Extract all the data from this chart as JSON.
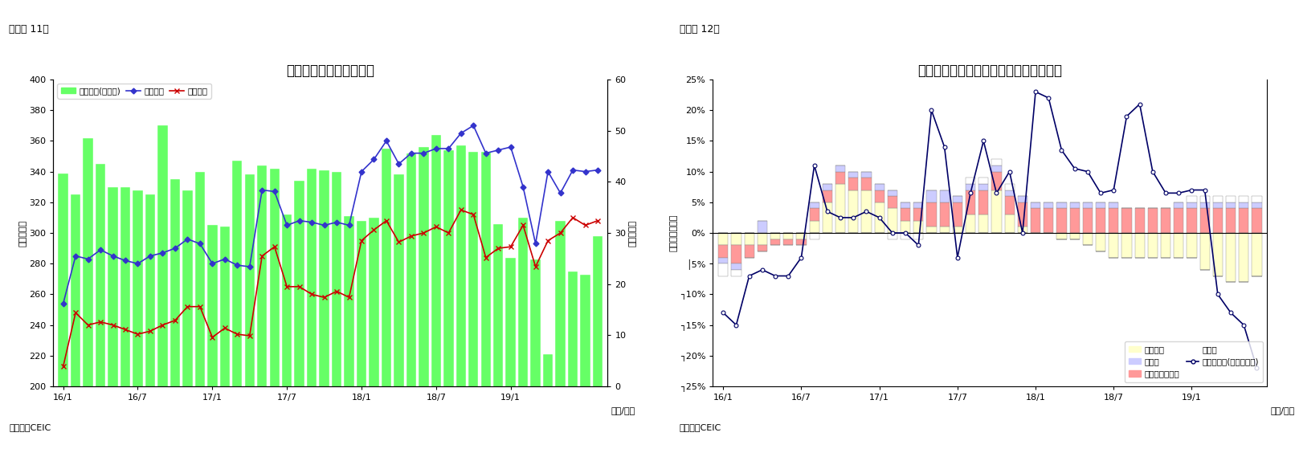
{
  "chart1": {
    "title": "シンガポール　貿易収支",
    "ylabel_left": "（億ドル）",
    "ylabel_right": "（億ドル）",
    "xlabel": "（年/月）",
    "source": "（資料）CEIC",
    "figure_label": "（図表 11）",
    "ylim_left": [
      200,
      400
    ],
    "ylim_right": [
      0,
      60
    ],
    "yticks_left": [
      200,
      220,
      240,
      260,
      280,
      300,
      320,
      340,
      360,
      380,
      400
    ],
    "yticks_right": [
      0,
      10,
      20,
      30,
      40,
      50,
      60
    ],
    "xtick_labels": [
      "16/1",
      "16/7",
      "17/1",
      "17/7",
      "18/1",
      "18/7",
      "19/1"
    ],
    "bar_color": "#66FF66",
    "line1_color": "#3333CC",
    "line2_color": "#CC0000",
    "bar_heights": [
      339,
      325,
      362,
      345,
      330,
      330,
      328,
      325,
      370,
      335,
      328,
      340,
      305,
      304,
      347,
      338,
      344,
      342,
      312,
      334,
      342,
      341,
      340,
      311,
      308,
      310,
      355,
      338,
      352,
      356,
      364,
      354,
      357,
      353,
      353,
      306,
      284,
      310,
      283,
      221,
      308,
      275,
      273,
      298
    ],
    "exports": [
      254,
      285,
      283,
      289,
      285,
      282,
      280,
      285,
      287,
      290,
      296,
      293,
      280,
      283,
      279,
      278,
      328,
      327,
      305,
      308,
      307,
      305,
      307,
      305,
      340,
      348,
      360,
      345,
      352,
      352,
      355,
      355,
      365,
      370,
      352,
      354,
      356,
      330,
      293,
      340,
      326,
      341,
      340,
      341
    ],
    "imports": [
      213,
      248,
      240,
      242,
      240,
      237,
      234,
      236,
      240,
      243,
      252,
      252,
      232,
      238,
      234,
      233,
      285,
      291,
      265,
      265,
      260,
      258,
      262,
      258,
      295,
      302,
      308,
      294,
      298,
      300,
      304,
      300,
      315,
      312,
      284,
      290,
      291,
      305,
      278,
      295,
      300,
      310,
      305,
      308
    ]
  },
  "chart2": {
    "title": "シンガポール　輸出の伸び率（品目別）",
    "ylabel_left": "（前年同期比）",
    "xlabel": "（年/月）",
    "source": "（資料）CEIC",
    "figure_label": "（図表 12）",
    "ylim": [
      -0.25,
      0.25
    ],
    "ytick_vals": [
      0.25,
      0.2,
      0.15,
      0.1,
      0.05,
      0.0,
      -0.05,
      -0.1,
      -0.15,
      -0.2,
      -0.25
    ],
    "ytick_labels": [
      "25%",
      "20%",
      "15%",
      "10%",
      "5%",
      "0%",
      "│5%",
      "┐10%",
      "┐15%",
      "┐20%",
      "┐25%"
    ],
    "xtick_labels": [
      "16/1",
      "16/7",
      "17/1",
      "17/7",
      "18/1",
      "18/7",
      "19/1"
    ],
    "color_electronics": "#FFFFCC",
    "color_pharma": "#CCCCFF",
    "color_chemicals": "#FF9999",
    "color_other": "#FFFFFF",
    "line_color": "#000066",
    "electronics": [
      -0.02,
      -0.02,
      -0.02,
      -0.02,
      -0.01,
      -0.01,
      -0.01,
      0.02,
      0.05,
      0.08,
      0.07,
      0.07,
      0.05,
      0.04,
      0.02,
      0.02,
      0.01,
      0.01,
      0.01,
      0.03,
      0.03,
      0.07,
      0.03,
      0.01,
      0.0,
      0.0,
      -0.01,
      -0.01,
      -0.02,
      -0.03,
      -0.04,
      -0.04,
      -0.04,
      -0.04,
      -0.04,
      -0.04,
      -0.04,
      -0.06,
      -0.07,
      -0.08,
      -0.08,
      -0.07
    ],
    "pharma": [
      -0.01,
      -0.01,
      0.0,
      0.02,
      0.0,
      0.0,
      0.0,
      0.01,
      0.01,
      0.01,
      0.01,
      0.01,
      0.01,
      0.01,
      0.01,
      0.01,
      0.02,
      0.02,
      0.01,
      0.01,
      0.01,
      0.01,
      0.01,
      0.01,
      0.01,
      0.01,
      0.01,
      0.01,
      0.01,
      0.01,
      0.01,
      0.0,
      0.0,
      0.0,
      0.0,
      0.01,
      0.01,
      0.01,
      0.01,
      0.01,
      0.01,
      0.01
    ],
    "chemicals": [
      -0.02,
      -0.03,
      -0.02,
      -0.01,
      -0.01,
      -0.01,
      -0.01,
      0.02,
      0.02,
      0.02,
      0.02,
      0.02,
      0.02,
      0.02,
      0.02,
      0.02,
      0.04,
      0.04,
      0.04,
      0.04,
      0.04,
      0.03,
      0.03,
      0.04,
      0.04,
      0.04,
      0.04,
      0.04,
      0.04,
      0.04,
      0.04,
      0.04,
      0.04,
      0.04,
      0.04,
      0.04,
      0.04,
      0.04,
      0.04,
      0.04,
      0.04,
      0.04
    ],
    "other": [
      -0.02,
      -0.01,
      0.0,
      0.0,
      0.0,
      0.0,
      0.0,
      -0.01,
      0.0,
      0.0,
      0.0,
      0.0,
      0.0,
      -0.01,
      -0.01,
      -0.01,
      0.0,
      0.0,
      0.0,
      0.01,
      0.01,
      0.01,
      0.01,
      0.0,
      0.0,
      0.0,
      0.0,
      0.0,
      0.0,
      0.0,
      0.0,
      0.0,
      0.0,
      0.0,
      0.0,
      0.0,
      0.01,
      0.01,
      0.01,
      0.01,
      0.01,
      0.01
    ],
    "nonoil_line": [
      -0.13,
      -0.15,
      -0.07,
      -0.06,
      -0.07,
      -0.07,
      -0.04,
      0.11,
      0.035,
      0.025,
      0.025,
      0.035,
      0.025,
      0.0,
      0.0,
      -0.02,
      0.2,
      0.14,
      -0.04,
      0.065,
      0.15,
      0.065,
      0.1,
      0.0,
      0.23,
      0.22,
      0.135,
      0.105,
      0.1,
      0.065,
      0.07,
      0.19,
      0.21,
      0.1,
      0.065,
      0.065,
      0.07,
      0.07,
      -0.1,
      -0.13,
      -0.15,
      -0.22
    ]
  }
}
